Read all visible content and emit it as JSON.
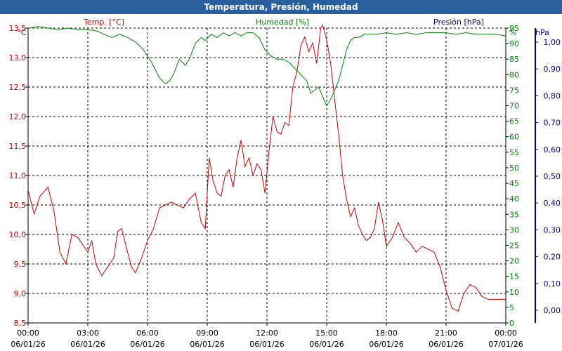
{
  "title": "Temperatura, Presión, Humedad",
  "colors": {
    "title_bg": "#2a5f9e",
    "temp": "#cc0000",
    "humidity": "#008000",
    "pressure": "#000080",
    "grid": "#000000"
  },
  "chart_data": {
    "type": "line",
    "x_ticks": [
      {
        "time": "00:00",
        "date": "06/01/26"
      },
      {
        "time": "03:00",
        "date": "06/01/26"
      },
      {
        "time": "06:00",
        "date": "06/01/26"
      },
      {
        "time": "09:00",
        "date": "06/01/26"
      },
      {
        "time": "12:00",
        "date": "06/01/26"
      },
      {
        "time": "15:00",
        "date": "06/01/26"
      },
      {
        "time": "18:00",
        "date": "06/01/26"
      },
      {
        "time": "21:00",
        "date": "06/01/26"
      },
      {
        "time": "00:00",
        "date": "07/01/26"
      }
    ],
    "x_range_hours": [
      0,
      24
    ],
    "axes": {
      "temp": {
        "label": "Temp. [°C]",
        "unit": "°C",
        "ylim": [
          8.5,
          13.5
        ],
        "ticks": [
          "8,5",
          "9,0",
          "9,5",
          "10,0",
          "10,5",
          "11,0",
          "11,5",
          "12,0",
          "12,5",
          "13,0",
          "13,5"
        ]
      },
      "humidity": {
        "label": "Humedad [%]",
        "unit": "%",
        "ylim": [
          0,
          95
        ],
        "ticks": [
          "0",
          "5",
          "10",
          "15",
          "20",
          "25",
          "30",
          "35",
          "40",
          "45",
          "50",
          "55",
          "60",
          "65",
          "70",
          "75",
          "80",
          "85",
          "90",
          "95"
        ]
      },
      "pressure": {
        "label": "Presión [hPa]",
        "unit": "hPa",
        "ylim": [
          0.0,
          1.0
        ],
        "ticks": [
          "0,00",
          "0,10",
          "0,20",
          "0,30",
          "0,40",
          "0,50",
          "0,60",
          "0,70",
          "0,80",
          "0,90",
          "1,00"
        ]
      }
    },
    "series": [
      {
        "name": "Temp. [°C]",
        "axis": "temp",
        "x": [
          0,
          0.3,
          0.6,
          1.0,
          1.3,
          1.6,
          1.9,
          2.2,
          2.5,
          2.8,
          3.0,
          3.2,
          3.4,
          3.7,
          4.0,
          4.3,
          4.5,
          4.7,
          5.0,
          5.2,
          5.4,
          5.7,
          6.0,
          6.3,
          6.6,
          6.9,
          7.2,
          7.5,
          7.8,
          8.1,
          8.4,
          8.7,
          8.9,
          9.1,
          9.3,
          9.5,
          9.7,
          9.9,
          10.1,
          10.3,
          10.5,
          10.7,
          10.9,
          11.1,
          11.3,
          11.5,
          11.7,
          11.9,
          12.1,
          12.3,
          12.5,
          12.7,
          12.9,
          13.1,
          13.3,
          13.5,
          13.7,
          13.9,
          14.1,
          14.3,
          14.5,
          14.7,
          14.8,
          15.0,
          15.2,
          15.4,
          15.6,
          15.8,
          16.0,
          16.2,
          16.4,
          16.6,
          16.8,
          17.0,
          17.2,
          17.4,
          17.6,
          17.8,
          18.0,
          18.3,
          18.6,
          18.9,
          19.2,
          19.5,
          19.8,
          20.1,
          20.4,
          20.7,
          21.0,
          21.3,
          21.6,
          21.9,
          22.2,
          22.5,
          22.8,
          23.1,
          23.4,
          23.7,
          24.0
        ],
        "values": [
          10.75,
          10.35,
          10.65,
          10.8,
          10.4,
          9.7,
          9.5,
          10.0,
          9.95,
          9.8,
          9.7,
          9.9,
          9.5,
          9.3,
          9.45,
          9.6,
          10.05,
          10.1,
          9.7,
          9.45,
          9.35,
          9.6,
          9.9,
          10.1,
          10.45,
          10.5,
          10.55,
          10.5,
          10.45,
          10.6,
          10.7,
          10.2,
          10.1,
          11.3,
          10.9,
          10.7,
          10.65,
          11.0,
          11.1,
          10.8,
          11.3,
          11.6,
          11.15,
          11.3,
          11.0,
          11.2,
          11.1,
          10.7,
          11.4,
          12.0,
          11.75,
          11.7,
          11.9,
          11.85,
          12.5,
          12.75,
          13.2,
          13.35,
          13.1,
          13.25,
          12.9,
          13.5,
          13.55,
          13.3,
          12.9,
          12.3,
          11.7,
          11.0,
          10.6,
          10.3,
          10.45,
          10.15,
          10.0,
          9.9,
          9.95,
          10.1,
          10.55,
          10.25,
          9.8,
          9.95,
          10.2,
          9.95,
          9.85,
          9.7,
          9.8,
          9.75,
          9.7,
          9.45,
          9.05,
          8.75,
          8.7,
          9.0,
          9.15,
          9.1,
          8.95,
          8.9,
          8.9,
          8.9,
          8.9
        ]
      },
      {
        "name": "Humedad [%]",
        "axis": "humidity",
        "x": [
          0,
          0.5,
          1.0,
          1.5,
          2.0,
          2.5,
          3.0,
          3.5,
          3.8,
          4.2,
          4.6,
          5.0,
          5.4,
          5.8,
          6.2,
          6.6,
          6.9,
          7.1,
          7.3,
          7.6,
          7.9,
          8.1,
          8.4,
          8.7,
          8.9,
          9.2,
          9.5,
          9.8,
          10.1,
          10.4,
          10.7,
          11.0,
          11.3,
          11.6,
          11.9,
          12.2,
          12.5,
          12.8,
          13.1,
          13.4,
          13.7,
          14.0,
          14.2,
          14.4,
          14.6,
          14.8,
          15.0,
          15.2,
          15.4,
          15.6,
          15.8,
          16.0,
          16.2,
          16.4,
          16.6,
          16.9,
          17.2,
          17.5,
          18.0,
          18.5,
          19.0,
          19.5,
          20.0,
          20.5,
          21.0,
          21.5,
          22.0,
          22.5,
          23.0,
          23.5,
          24.0
        ],
        "values": [
          95,
          95.5,
          95,
          94.5,
          95,
          94.5,
          94.5,
          94,
          93,
          92,
          93,
          92,
          90.5,
          88,
          84,
          79,
          77,
          78,
          80,
          85,
          83,
          85,
          90,
          92,
          91,
          93,
          92,
          93.5,
          92.5,
          93.5,
          92.5,
          93.5,
          93.5,
          92,
          88,
          86,
          85,
          85,
          84,
          82,
          80,
          78,
          74,
          75,
          76,
          73,
          70,
          72,
          75,
          78,
          83,
          88,
          91,
          92,
          92,
          93,
          93,
          93,
          93.5,
          93,
          93.5,
          93,
          93.5,
          93.5,
          93.5,
          93,
          93.5,
          93,
          93,
          93,
          92.5
        ]
      },
      {
        "name": "Presión [hPa]",
        "axis": "pressure",
        "x": [],
        "values": []
      }
    ]
  }
}
